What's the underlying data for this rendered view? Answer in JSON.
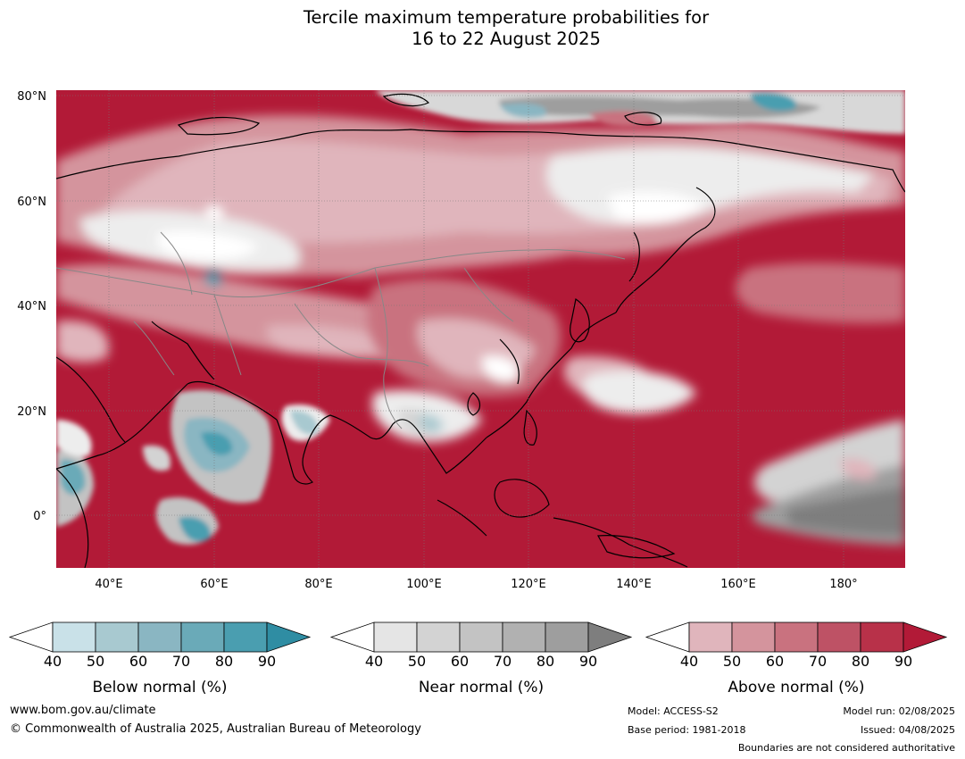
{
  "title": {
    "line1": "Tercile maximum temperature probabilities for",
    "line2": "16 to 22 August 2025"
  },
  "map": {
    "lat_labels": [
      "80°N",
      "60°N",
      "40°N",
      "20°N",
      "0°"
    ],
    "lat_values": [
      80,
      60,
      40,
      20,
      0
    ],
    "lon_labels": [
      "40°E",
      "60°E",
      "80°E",
      "100°E",
      "120°E",
      "140°E",
      "160°E",
      "180°"
    ],
    "lon_values": [
      40,
      60,
      80,
      100,
      120,
      140,
      160,
      180
    ],
    "lon_range": [
      30,
      192
    ],
    "lat_range": [
      -10,
      81
    ],
    "background_category": "above-normal-90"
  },
  "colorbars": [
    {
      "id": "below",
      "label": "Below normal (%)",
      "ticks": [
        "40",
        "50",
        "60",
        "70",
        "80",
        "90"
      ],
      "colors": [
        "#ffffff",
        "#c9e1e8",
        "#a8c9d0",
        "#8ab6c2",
        "#6aaab8",
        "#4a9eb0",
        "#2f8da3"
      ]
    },
    {
      "id": "near",
      "label": "Near normal (%)",
      "ticks": [
        "40",
        "50",
        "60",
        "70",
        "80",
        "90"
      ],
      "colors": [
        "#ffffff",
        "#e5e5e5",
        "#d3d3d3",
        "#c3c3c3",
        "#b1b1b1",
        "#9e9e9e",
        "#7e7e7e"
      ]
    },
    {
      "id": "above",
      "label": "Above normal (%)",
      "ticks": [
        "40",
        "50",
        "60",
        "70",
        "80",
        "90"
      ],
      "colors": [
        "#ffffff",
        "#e0b5bc",
        "#d4949d",
        "#c9727f",
        "#be5265",
        "#b83149",
        "#b21a37"
      ]
    }
  ],
  "footer": {
    "website": "www.bom.gov.au/climate",
    "copyright": "© Commonwealth of Australia 2025, Australian Bureau of Meteorology",
    "model": "Model: ACCESS-S2",
    "base_period": "Base period: 1981-2018",
    "model_run": "Model run: 02/08/2025",
    "issued": "Issued: 04/08/2025",
    "disclaimer": "Boundaries are not considered authoritative"
  }
}
